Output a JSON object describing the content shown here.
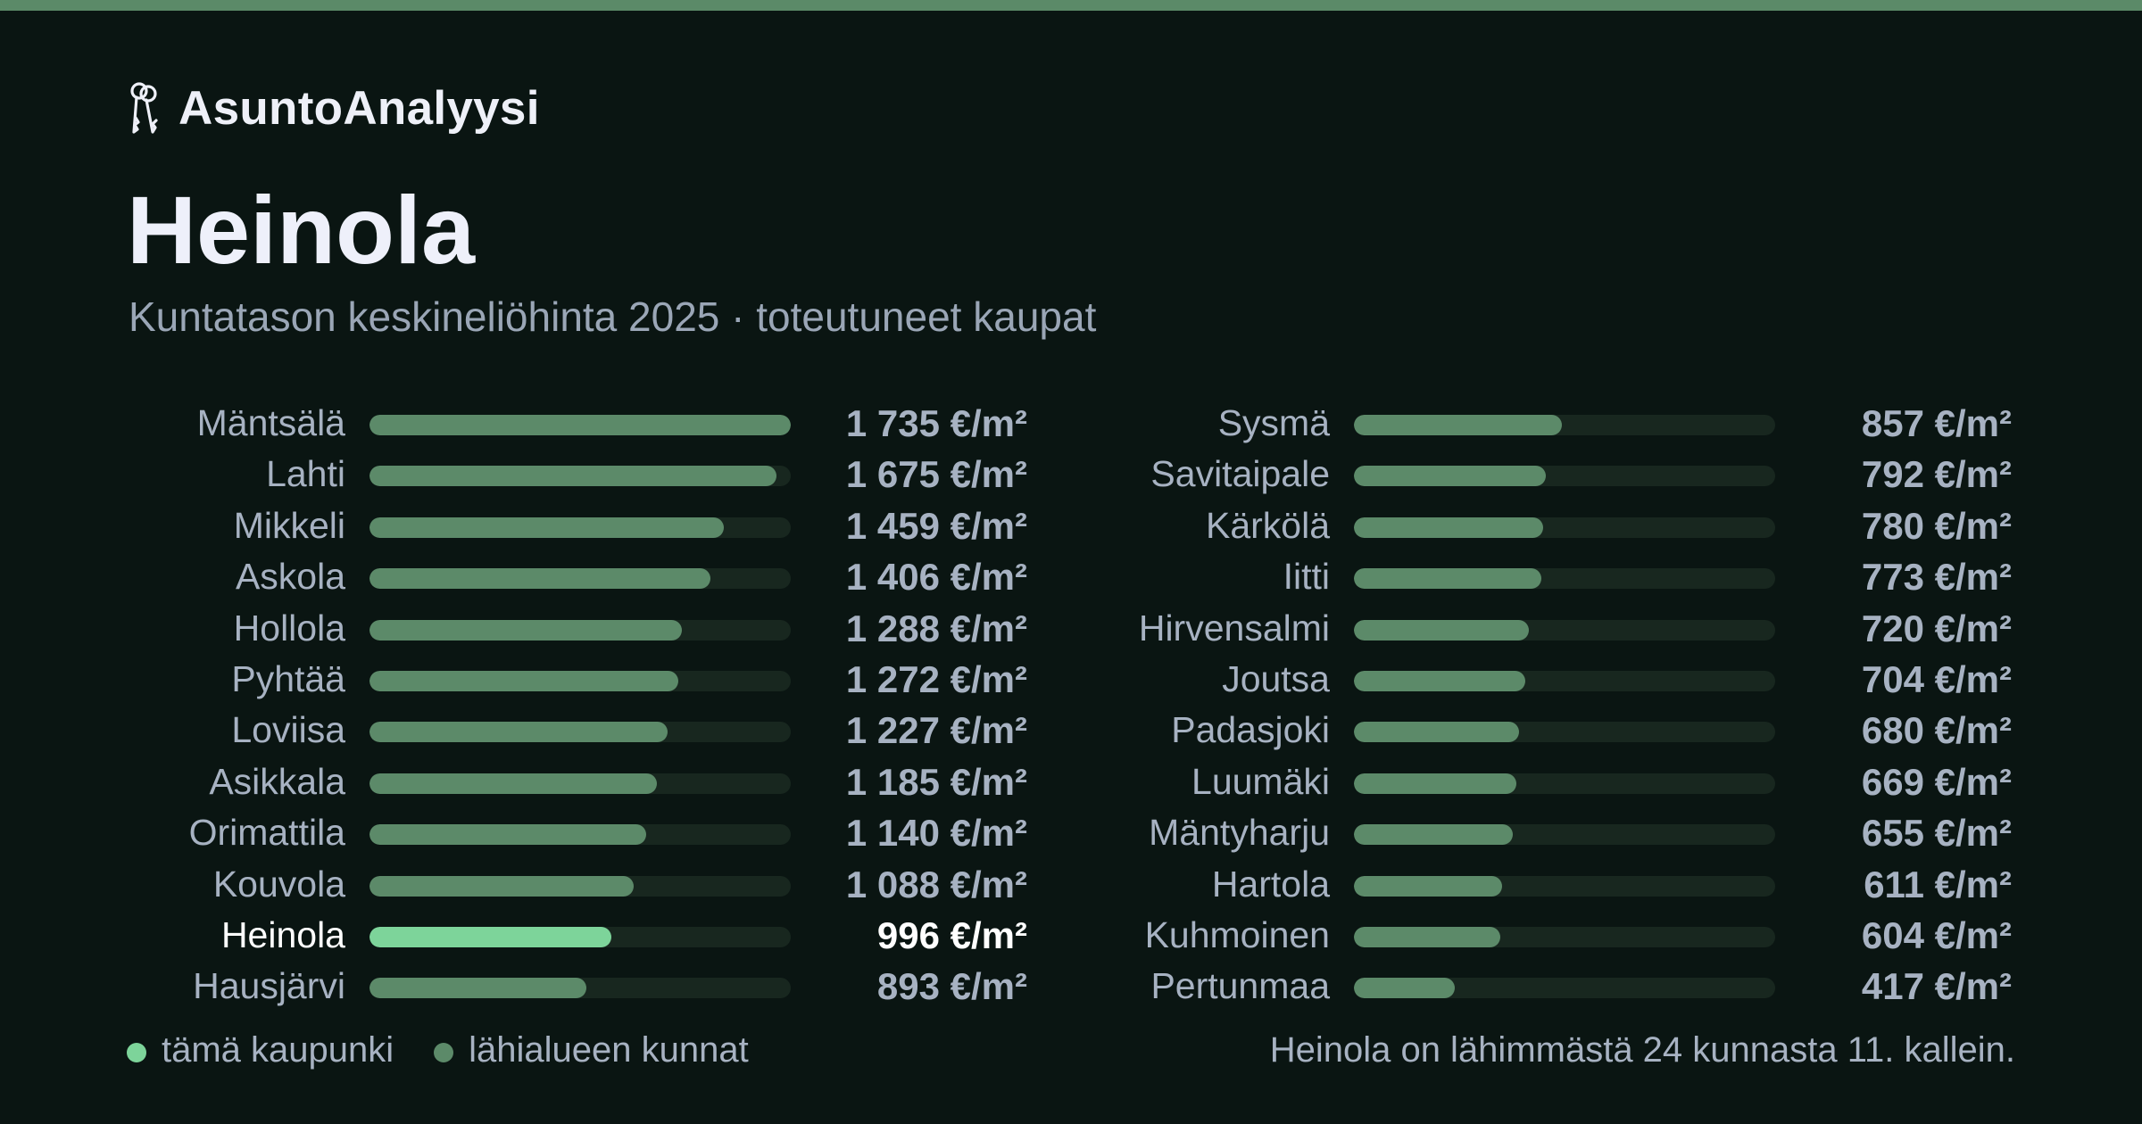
{
  "brand": {
    "name": "AsuntoAnalyysi",
    "icon": "keys-icon"
  },
  "header": {
    "title": "Heinola",
    "subtitle": "Kuntatason keskineliöhinta 2025 · toteutuneet kaupat"
  },
  "colors": {
    "background": "#0a1512",
    "accent_bar": "#5b8a68",
    "bar": "#5c8a69",
    "bar_highlight": "#7dd49a",
    "track": "#18271f"
  },
  "chart_data": {
    "type": "bar",
    "orientation": "horizontal",
    "unit": "€/m²",
    "max_value": 1735,
    "highlight": "Heinola",
    "categories": [
      "Mäntsälä",
      "Lahti",
      "Mikkeli",
      "Askola",
      "Hollola",
      "Pyhtää",
      "Loviisa",
      "Asikkala",
      "Orimattila",
      "Kouvola",
      "Heinola",
      "Hausjärvi",
      "Sysmä",
      "Savitaipale",
      "Kärkölä",
      "Iitti",
      "Hirvensalmi",
      "Joutsa",
      "Padasjoki",
      "Luumäki",
      "Mäntyharju",
      "Hartola",
      "Kuhmoinen",
      "Pertunmaa"
    ],
    "values": [
      1735,
      1675,
      1459,
      1406,
      1288,
      1272,
      1227,
      1185,
      1140,
      1088,
      996,
      893,
      857,
      792,
      780,
      773,
      720,
      704,
      680,
      669,
      655,
      611,
      604,
      417
    ],
    "value_labels": [
      "1 735 €/m²",
      "1 675 €/m²",
      "1 459 €/m²",
      "1 406 €/m²",
      "1 288 €/m²",
      "1 272 €/m²",
      "1 227 €/m²",
      "1 185 €/m²",
      "1 140 €/m²",
      "1 088 €/m²",
      "996 €/m²",
      "893 €/m²",
      "857 €/m²",
      "792 €/m²",
      "780 €/m²",
      "773 €/m²",
      "720 €/m²",
      "704 €/m²",
      "680 €/m²",
      "669 €/m²",
      "655 €/m²",
      "611 €/m²",
      "604 €/m²",
      "417 €/m²"
    ]
  },
  "legend": {
    "highlight_label": "tämä kaupunki",
    "base_label": "lähialueen kunnat"
  },
  "footer": {
    "note": "Heinola on lähimmästä 24 kunnasta 11. kallein."
  }
}
